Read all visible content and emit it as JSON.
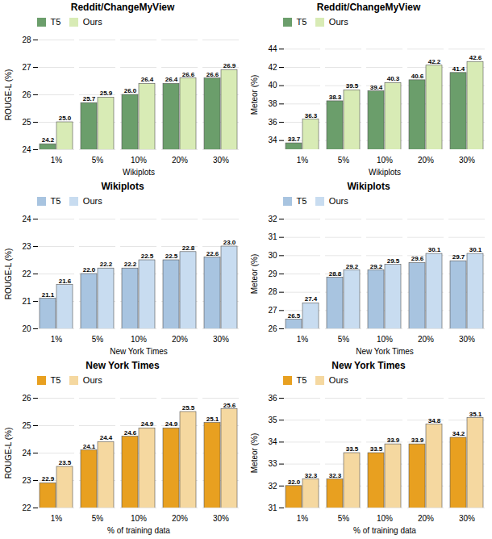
{
  "chart_data": [
    {
      "type": "bar",
      "title": "Reddit/ChangeMyView",
      "xlabel": "Wikiplots",
      "ylabel": "ROUGE-L (%)",
      "categories": [
        "1%",
        "5%",
        "10%",
        "20%",
        "30%"
      ],
      "series": [
        {
          "name": "T5",
          "color": "#6B9E6B",
          "values": [
            24.2,
            25.7,
            26.0,
            26.4,
            26.6
          ],
          "value_labels": [
            "24.2",
            "25.7",
            "26.0",
            "26.4",
            "26.6"
          ]
        },
        {
          "name": "Ours",
          "color": "#D8EBB5",
          "values": [
            25.0,
            25.9,
            26.4,
            26.6,
            26.9
          ],
          "value_labels": [
            "25.0",
            "25.9",
            "26.4",
            "26.6",
            "26.9"
          ]
        }
      ],
      "ylim": [
        24,
        28
      ],
      "yticks": [
        24,
        25,
        26,
        27,
        28
      ],
      "grid": true,
      "legend": "upper left",
      "data_labels": true
    },
    {
      "type": "bar",
      "title": "Reddit/ChangeMyView",
      "xlabel": "Wikiplots",
      "ylabel": "Meteor (%)",
      "categories": [
        "1%",
        "5%",
        "10%",
        "20%",
        "30%"
      ],
      "series": [
        {
          "name": "T5",
          "color": "#6B9E6B",
          "values": [
            33.7,
            38.3,
            39.4,
            40.6,
            41.4
          ],
          "value_labels": [
            "33.7",
            "38.3",
            "39.4",
            "40.6",
            "41.4"
          ]
        },
        {
          "name": "Ours",
          "color": "#D8EBB5",
          "values": [
            36.3,
            39.5,
            40.3,
            42.2,
            42.6
          ],
          "value_labels": [
            "36.3",
            "39.5",
            "40.3",
            "42.2",
            "42.6"
          ]
        }
      ],
      "ylim": [
        33,
        45
      ],
      "yticks": [
        34,
        36,
        38,
        40,
        42,
        44
      ],
      "grid": true,
      "legend": "upper left",
      "data_labels": true
    },
    {
      "type": "bar",
      "title": "Wikiplots",
      "xlabel": "New York Times",
      "ylabel": "ROUGE-L (%)",
      "categories": [
        "1%",
        "5%",
        "10%",
        "20%",
        "30%"
      ],
      "series": [
        {
          "name": "T5",
          "color": "#A8C4E0",
          "values": [
            21.1,
            22.0,
            22.2,
            22.5,
            22.6
          ],
          "value_labels": [
            "21.1",
            "22.0",
            "22.2",
            "22.5",
            "22.6"
          ]
        },
        {
          "name": "Ours",
          "color": "#C8DCF0",
          "values": [
            21.6,
            22.2,
            22.5,
            22.8,
            23.0
          ],
          "value_labels": [
            "21.6",
            "22.2",
            "22.5",
            "22.8",
            "23.0"
          ]
        }
      ],
      "ylim": [
        20,
        24
      ],
      "yticks": [
        20,
        21,
        22,
        23,
        24
      ],
      "grid": true,
      "legend": "upper left",
      "data_labels": true
    },
    {
      "type": "bar",
      "title": "Wikiplots",
      "xlabel": "New York Times",
      "ylabel": "Meteor (%)",
      "categories": [
        "1%",
        "5%",
        "10%",
        "20%",
        "30%"
      ],
      "series": [
        {
          "name": "T5",
          "color": "#A8C4E0",
          "values": [
            26.5,
            28.8,
            29.2,
            29.6,
            29.7
          ],
          "value_labels": [
            "26.5",
            "28.8",
            "29.2",
            "29.6",
            "29.7"
          ]
        },
        {
          "name": "Ours",
          "color": "#C8DCF0",
          "values": [
            27.4,
            29.2,
            29.5,
            30.1,
            30.1
          ],
          "value_labels": [
            "27.4",
            "29.2",
            "29.5",
            "30.1",
            "30.1"
          ]
        }
      ],
      "ylim": [
        26,
        32
      ],
      "yticks": [
        26,
        27,
        28,
        29,
        30,
        31,
        32
      ],
      "grid": true,
      "legend": "upper left",
      "data_labels": true
    },
    {
      "type": "bar",
      "title": "New York Times",
      "xlabel": "% of training data",
      "ylabel": "ROUGE-L (%)",
      "categories": [
        "1%",
        "5%",
        "10%",
        "20%",
        "30%"
      ],
      "series": [
        {
          "name": "T5",
          "color": "#E8A020",
          "values": [
            22.9,
            24.1,
            24.6,
            24.9,
            25.1
          ],
          "value_labels": [
            "22.9",
            "24.1",
            "24.6",
            "24.9",
            "25.1"
          ]
        },
        {
          "name": "Ours",
          "color": "#F5D8A0",
          "values": [
            23.5,
            24.4,
            24.9,
            25.5,
            25.6
          ],
          "value_labels": [
            "23.5",
            "24.4",
            "24.9",
            "25.5",
            "25.6"
          ]
        }
      ],
      "ylim": [
        22,
        26
      ],
      "yticks": [
        22,
        23,
        24,
        25,
        26
      ],
      "grid": true,
      "legend": "upper left",
      "data_labels": true
    },
    {
      "type": "bar",
      "title": "New York Times",
      "xlabel": "% of training data",
      "ylabel": "Meteor (%)",
      "categories": [
        "1%",
        "5%",
        "10%",
        "20%",
        "30%"
      ],
      "series": [
        {
          "name": "T5",
          "color": "#E8A020",
          "values": [
            32.0,
            32.3,
            33.5,
            33.9,
            34.2
          ],
          "value_labels": [
            "32.0",
            "32.3",
            "33.5",
            "33.9",
            "34.2"
          ]
        },
        {
          "name": "Ours",
          "color": "#F5D8A0",
          "values": [
            32.3,
            33.5,
            33.9,
            34.8,
            35.1
          ],
          "value_labels": [
            "32.3",
            "33.5",
            "33.9",
            "34.8",
            "35.1"
          ]
        }
      ],
      "ylim": [
        31,
        36
      ],
      "yticks": [
        31,
        32,
        33,
        34,
        35,
        36
      ],
      "grid": true,
      "legend": "upper left",
      "data_labels": true
    }
  ]
}
